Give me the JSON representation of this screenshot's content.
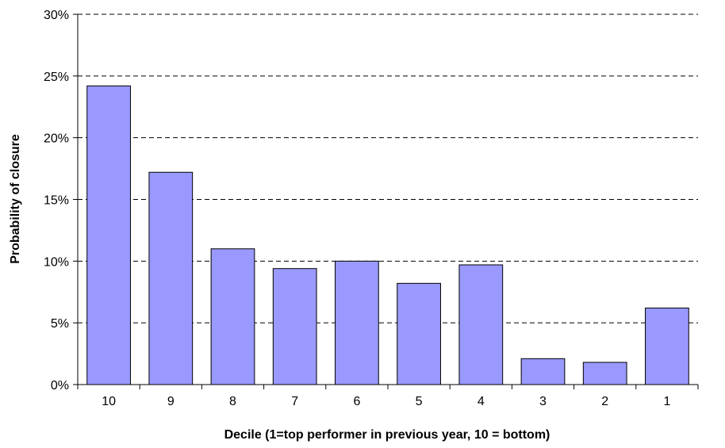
{
  "chart_data": {
    "type": "bar",
    "title": "",
    "xlabel": "Decile (1=top performer in previous year, 10 = bottom)",
    "ylabel": "Probability of closure",
    "categories": [
      "10",
      "9",
      "8",
      "7",
      "6",
      "5",
      "4",
      "3",
      "2",
      "1"
    ],
    "values": [
      0.242,
      0.172,
      0.11,
      0.094,
      0.1,
      0.082,
      0.097,
      0.021,
      0.018,
      0.062
    ],
    "ylim": [
      0,
      0.3
    ],
    "yticks": [
      0,
      0.05,
      0.1,
      0.15,
      0.2,
      0.25,
      0.3
    ],
    "ytick_labels": [
      "0%",
      "5%",
      "10%",
      "15%",
      "20%",
      "25%",
      "30%"
    ],
    "grid": "horizontal dashed",
    "legend": "none",
    "colors": {
      "bar_fill": "#9999ff",
      "bar_stroke": "#000000",
      "grid": "#000000",
      "axis": "#000000"
    }
  }
}
